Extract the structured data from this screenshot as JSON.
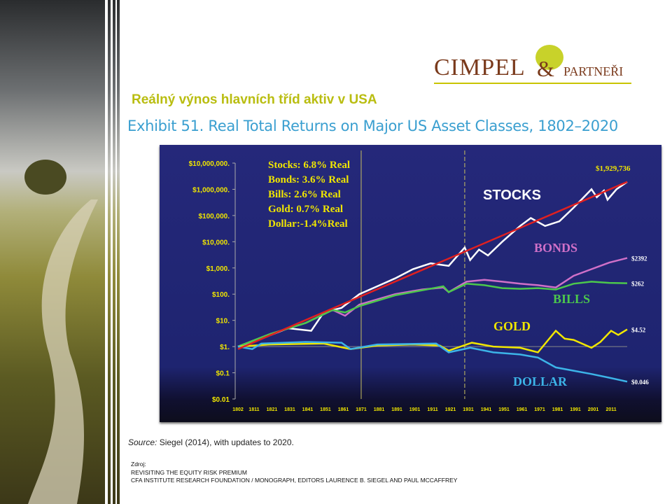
{
  "header": {
    "subtitle": "Reálný výnos hlavních tříd aktiv v USA",
    "exhibit_title": "Exhibit 51. Real Total Returns on Major US Asset Classes, 1802–2020"
  },
  "logo": {
    "name": "CIMPEL",
    "amp": "&",
    "partner": "PARTNEŘI"
  },
  "footer": {
    "source_label": "Source:",
    "source_text": " Siegel (2014), with updates to 2020.",
    "ref_label": "Zdroj:",
    "ref_line1": "REVISITING THE EQUITY RISK PREMIUM",
    "ref_line2": "CFA INSTITUTE RESEARCH FOUNDATION / MONOGRAPH, EDITORS LAURENCE B. SIEGEL AND PAUL MCCAFFREY"
  },
  "chart_data": {
    "type": "line",
    "yscale": "log",
    "xlim": [
      1802,
      2020
    ],
    "ylim": [
      0.01,
      10000000
    ],
    "y_ticks": [
      {
        "v": 10000000,
        "label": "$10,000,000."
      },
      {
        "v": 1000000,
        "label": "$1,000,000."
      },
      {
        "v": 100000,
        "label": "$100,000."
      },
      {
        "v": 10000,
        "label": "$10,000."
      },
      {
        "v": 1000,
        "label": "$1,000."
      },
      {
        "v": 100,
        "label": "$100."
      },
      {
        "v": 10,
        "label": "$10."
      },
      {
        "v": 1,
        "label": "$1."
      },
      {
        "v": 0.1,
        "label": "$0.1"
      },
      {
        "v": 0.01,
        "label": "$0.01"
      }
    ],
    "x_ticks": [
      "1802",
      "1811",
      "1821",
      "1831",
      "1841",
      "1851",
      "1861",
      "1871",
      "1881",
      "1891",
      "1901",
      "1911",
      "1921",
      "1931",
      "1941",
      "1951",
      "1961",
      "1971",
      "1981",
      "1991",
      "2001",
      "2011"
    ],
    "vlines": [
      1871,
      1929
    ],
    "legend_box": [
      "Stocks: 6.8% Real",
      "Bonds: 3.6% Real",
      "Bills:    2.6% Real",
      "Gold:   0.7% Real",
      "Dollar:-1.4%Real"
    ],
    "series": [
      {
        "name": "STOCKS",
        "color": "#ffffff",
        "end_label": "$1,929,736",
        "points": [
          [
            1802,
            1
          ],
          [
            1815,
            2
          ],
          [
            1830,
            5
          ],
          [
            1843,
            4
          ],
          [
            1850,
            20
          ],
          [
            1860,
            30
          ],
          [
            1870,
            100
          ],
          [
            1880,
            200
          ],
          [
            1890,
            400
          ],
          [
            1900,
            900
          ],
          [
            1910,
            1500
          ],
          [
            1920,
            1200
          ],
          [
            1929,
            6000
          ],
          [
            1932,
            2000
          ],
          [
            1937,
            5000
          ],
          [
            1942,
            3000
          ],
          [
            1950,
            10000
          ],
          [
            1960,
            40000
          ],
          [
            1966,
            80000
          ],
          [
            1974,
            40000
          ],
          [
            1982,
            60000
          ],
          [
            1990,
            200000
          ],
          [
            2000,
            1000000
          ],
          [
            2003,
            500000
          ],
          [
            2007,
            900000
          ],
          [
            2009,
            400000
          ],
          [
            2014,
            1000000
          ],
          [
            2020,
            1929736
          ]
        ]
      },
      {
        "name": "BONDS",
        "color": "#d070c8",
        "end_label": "$2392",
        "points": [
          [
            1802,
            1
          ],
          [
            1820,
            3
          ],
          [
            1840,
            8
          ],
          [
            1855,
            25
          ],
          [
            1862,
            15
          ],
          [
            1870,
            40
          ],
          [
            1890,
            100
          ],
          [
            1905,
            150
          ],
          [
            1917,
            180
          ],
          [
            1920,
            120
          ],
          [
            1930,
            300
          ],
          [
            1940,
            350
          ],
          [
            1950,
            300
          ],
          [
            1960,
            250
          ],
          [
            1970,
            220
          ],
          [
            1980,
            180
          ],
          [
            1990,
            500
          ],
          [
            2000,
            900
          ],
          [
            2010,
            1600
          ],
          [
            2020,
            2392
          ]
        ]
      },
      {
        "name": "BILLS",
        "color": "#4cc84c",
        "end_label": "$262",
        "points": [
          [
            1802,
            1
          ],
          [
            1820,
            3
          ],
          [
            1840,
            8
          ],
          [
            1855,
            25
          ],
          [
            1862,
            20
          ],
          [
            1870,
            35
          ],
          [
            1890,
            90
          ],
          [
            1905,
            140
          ],
          [
            1917,
            200
          ],
          [
            1920,
            120
          ],
          [
            1930,
            250
          ],
          [
            1940,
            220
          ],
          [
            1950,
            170
          ],
          [
            1960,
            160
          ],
          [
            1970,
            170
          ],
          [
            1980,
            150
          ],
          [
            1990,
            250
          ],
          [
            2000,
            300
          ],
          [
            2010,
            270
          ],
          [
            2020,
            262
          ]
        ]
      },
      {
        "name": "GOLD",
        "color": "#f0e600",
        "end_label": "$4.52",
        "points": [
          [
            1802,
            1
          ],
          [
            1820,
            1.2
          ],
          [
            1850,
            1.3
          ],
          [
            1865,
            0.8
          ],
          [
            1880,
            1.1
          ],
          [
            1900,
            1.2
          ],
          [
            1915,
            1.1
          ],
          [
            1920,
            0.7
          ],
          [
            1933,
            1.4
          ],
          [
            1945,
            1
          ],
          [
            1960,
            0.9
          ],
          [
            1970,
            0.6
          ],
          [
            1980,
            4
          ],
          [
            1985,
            2
          ],
          [
            1990,
            1.8
          ],
          [
            2000,
            0.9
          ],
          [
            2005,
            1.5
          ],
          [
            2011,
            4
          ],
          [
            2015,
            2.8
          ],
          [
            2020,
            4.52
          ]
        ]
      },
      {
        "name": "DOLLAR",
        "color": "#3cb4e8",
        "end_label": "$0.046",
        "points": [
          [
            1802,
            1
          ],
          [
            1810,
            0.8
          ],
          [
            1815,
            1.3
          ],
          [
            1840,
            1.5
          ],
          [
            1860,
            1.4
          ],
          [
            1865,
            0.8
          ],
          [
            1880,
            1.2
          ],
          [
            1913,
            1.3
          ],
          [
            1920,
            0.6
          ],
          [
            1932,
            0.9
          ],
          [
            1945,
            0.6
          ],
          [
            1960,
            0.5
          ],
          [
            1970,
            0.38
          ],
          [
            1980,
            0.16
          ],
          [
            1990,
            0.12
          ],
          [
            2000,
            0.09
          ],
          [
            2010,
            0.065
          ],
          [
            2020,
            0.046
          ]
        ]
      },
      {
        "name": "trend",
        "color": "#e02020",
        "end_label": "",
        "points": [
          [
            1802,
            0.8
          ],
          [
            2020,
            1929736
          ]
        ]
      }
    ]
  }
}
